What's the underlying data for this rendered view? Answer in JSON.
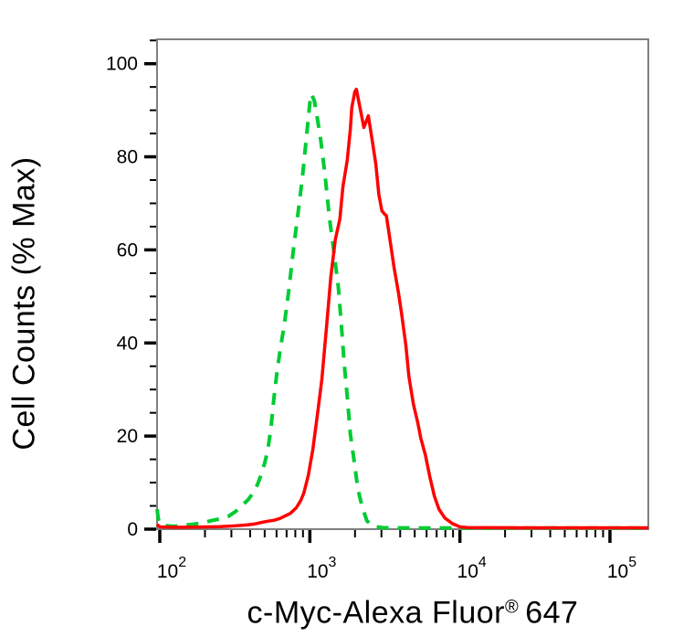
{
  "figure": {
    "background": "#FFFFFF",
    "frame_color": "#808080",
    "tick_color": "#000000",
    "text_color": "#000000"
  },
  "chart_data": {
    "type": "line",
    "subtype": "flow-cytometry-overlay-histogram",
    "title": "",
    "xlabel": {
      "text": "c-Myc-Alexa Fluor® 647",
      "base": "c-Myc-Alexa Fluor",
      "superscript": "®",
      "suffix": "647"
    },
    "ylabel": "Cell Counts (% Max)",
    "x_scale": "log10",
    "x_range_log10": [
      1.982,
      5.256
    ],
    "ylim": [
      0,
      105.3
    ],
    "grid": false,
    "legend": {
      "visible": false
    },
    "x_major_ticks": [
      {
        "log10": 2,
        "base": "10",
        "exponent": "2"
      },
      {
        "log10": 3,
        "base": "10",
        "exponent": "3"
      },
      {
        "log10": 4,
        "base": "10",
        "exponent": "4"
      },
      {
        "log10": 5,
        "base": "10",
        "exponent": "5"
      }
    ],
    "x_minor_tick_multiples": [
      2,
      3,
      4,
      5,
      6,
      7,
      8,
      9
    ],
    "y_major_ticks": [
      {
        "value": 0,
        "label": "0"
      },
      {
        "value": 20,
        "label": "20"
      },
      {
        "value": 40,
        "label": "40"
      },
      {
        "value": 60,
        "label": "60"
      },
      {
        "value": 80,
        "label": "80"
      },
      {
        "value": 100,
        "label": "100"
      }
    ],
    "y_minor_step": 5,
    "series": [
      {
        "id": "green-dashed",
        "color": "#00CC33",
        "line_style": "dashed",
        "dash_pattern": [
          13,
          10
        ],
        "line_width": 4,
        "points_log10x_percent": [
          [
            1.982,
            4.3
          ],
          [
            1.99,
            2.2
          ],
          [
            2.0,
            1.2
          ],
          [
            2.03,
            0.8
          ],
          [
            2.09,
            0.6
          ],
          [
            2.15,
            0.8
          ],
          [
            2.21,
            1.0
          ],
          [
            2.28,
            1.3
          ],
          [
            2.34,
            1.8
          ],
          [
            2.4,
            2.2
          ],
          [
            2.46,
            2.8
          ],
          [
            2.51,
            3.9
          ],
          [
            2.55,
            5.1
          ],
          [
            2.59,
            6.4
          ],
          [
            2.62,
            7.7
          ],
          [
            2.65,
            9.5
          ],
          [
            2.67,
            11.2
          ],
          [
            2.7,
            14.3
          ],
          [
            2.72,
            17.0
          ],
          [
            2.74,
            21.5
          ],
          [
            2.76,
            28.0
          ],
          [
            2.78,
            33.5
          ],
          [
            2.8,
            38.1
          ],
          [
            2.83,
            44.0
          ],
          [
            2.86,
            51.3
          ],
          [
            2.89,
            60.0
          ],
          [
            2.92,
            67.6
          ],
          [
            2.95,
            75.4
          ],
          [
            2.98,
            85.0
          ],
          [
            3.0,
            91.5
          ],
          [
            3.01,
            93.5
          ],
          [
            3.03,
            92.0
          ],
          [
            3.04,
            90.2
          ],
          [
            3.07,
            84.3
          ],
          [
            3.1,
            76.4
          ],
          [
            3.13,
            67.0
          ],
          [
            3.16,
            59.7
          ],
          [
            3.19,
            51.9
          ],
          [
            3.21,
            44.0
          ],
          [
            3.23,
            35.2
          ],
          [
            3.25,
            28.3
          ],
          [
            3.27,
            20.4
          ],
          [
            3.3,
            13.6
          ],
          [
            3.32,
            8.6
          ],
          [
            3.35,
            4.7
          ],
          [
            3.38,
            1.8
          ],
          [
            3.42,
            0.6
          ],
          [
            3.49,
            0.3
          ],
          [
            3.7,
            0.25
          ],
          [
            4.0,
            0.25
          ],
          [
            4.4,
            0.25
          ],
          [
            4.8,
            0.25
          ],
          [
            5.1,
            0.25
          ],
          [
            5.256,
            0.25
          ]
        ]
      },
      {
        "id": "red-solid",
        "color": "#FF0000",
        "line_style": "solid",
        "dash_pattern": null,
        "line_width": 3.5,
        "points_log10x_percent": [
          [
            1.982,
            1.0
          ],
          [
            2.0,
            0.5
          ],
          [
            2.1,
            0.4
          ],
          [
            2.25,
            0.45
          ],
          [
            2.4,
            0.55
          ],
          [
            2.5,
            0.7
          ],
          [
            2.58,
            0.9
          ],
          [
            2.63,
            1.1
          ],
          [
            2.67,
            1.4
          ],
          [
            2.72,
            1.7
          ],
          [
            2.76,
            1.9
          ],
          [
            2.8,
            2.3
          ],
          [
            2.84,
            2.9
          ],
          [
            2.87,
            3.4
          ],
          [
            2.91,
            4.6
          ],
          [
            2.94,
            6.2
          ],
          [
            2.96,
            7.8
          ],
          [
            2.99,
            11.6
          ],
          [
            3.02,
            17.1
          ],
          [
            3.05,
            24.4
          ],
          [
            3.08,
            32.2
          ],
          [
            3.11,
            43.0
          ],
          [
            3.14,
            54.2
          ],
          [
            3.17,
            62.3
          ],
          [
            3.2,
            66.6
          ],
          [
            3.22,
            73.5
          ],
          [
            3.25,
            79.4
          ],
          [
            3.27,
            86.0
          ],
          [
            3.28,
            90.6
          ],
          [
            3.3,
            94.0
          ],
          [
            3.31,
            94.5
          ],
          [
            3.33,
            91.2
          ],
          [
            3.36,
            86.3
          ],
          [
            3.39,
            88.8
          ],
          [
            3.42,
            82.7
          ],
          [
            3.44,
            78.4
          ],
          [
            3.46,
            71.9
          ],
          [
            3.48,
            68.4
          ],
          [
            3.5,
            67.6
          ],
          [
            3.51,
            67.4
          ],
          [
            3.53,
            63.1
          ],
          [
            3.56,
            56.4
          ],
          [
            3.59,
            50.9
          ],
          [
            3.61,
            46.6
          ],
          [
            3.64,
            39.5
          ],
          [
            3.66,
            32.8
          ],
          [
            3.69,
            26.9
          ],
          [
            3.72,
            22.8
          ],
          [
            3.74,
            19.5
          ],
          [
            3.77,
            15.9
          ],
          [
            3.8,
            11.2
          ],
          [
            3.83,
            7.1
          ],
          [
            3.86,
            4.3
          ],
          [
            3.9,
            2.4
          ],
          [
            3.95,
            1.2
          ],
          [
            4.0,
            0.5
          ],
          [
            4.05,
            0.35
          ],
          [
            4.4,
            0.3
          ],
          [
            4.8,
            0.3
          ],
          [
            5.1,
            0.3
          ],
          [
            5.256,
            0.3
          ]
        ]
      }
    ]
  }
}
